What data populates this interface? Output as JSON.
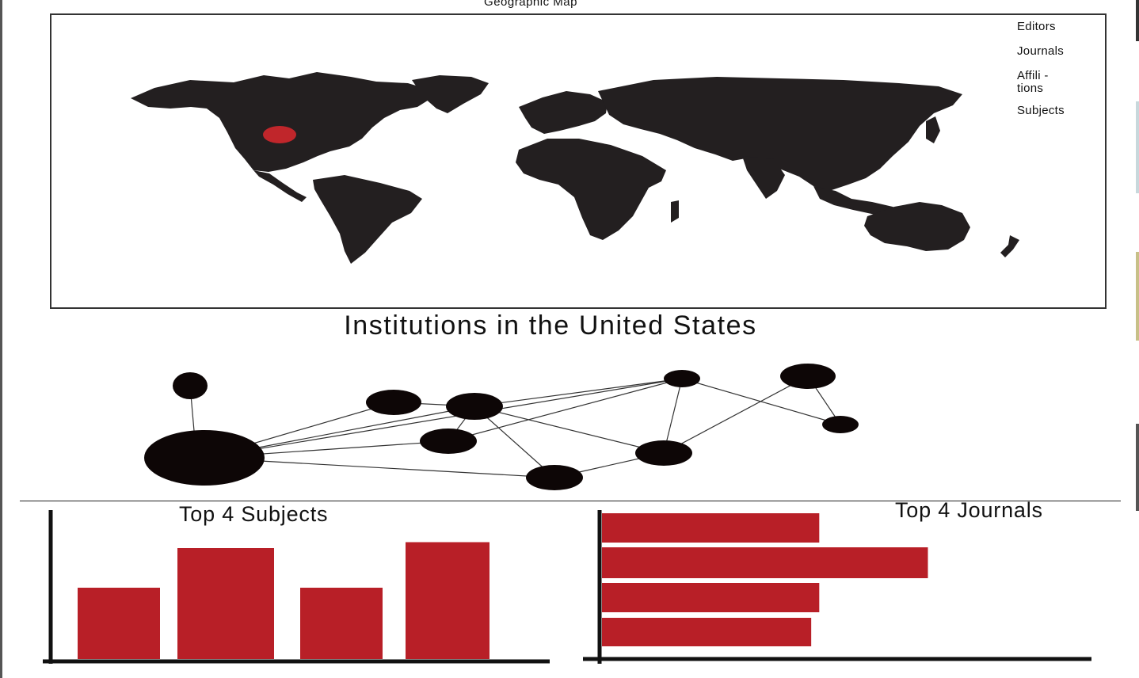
{
  "map_panel": {
    "title": "Geographic Map",
    "legend": [
      "Editors",
      "Journals",
      "Affili  -\ntions",
      "Subjects"
    ],
    "marker_color": "#c0262b",
    "land_color": "#231f20"
  },
  "network_panel": {
    "title": "Institutions in the United States",
    "node_color": "#0d0606"
  },
  "colors": {
    "bar": "#b81f27",
    "axis": "#111111"
  },
  "chart_data": [
    {
      "type": "bar",
      "title": "Top 4 Subjects",
      "categories": [
        "",
        "",
        "",
        ""
      ],
      "values": [
        3.6,
        5.6,
        3.6,
        5.9
      ],
      "ylim": [
        0,
        7.2
      ],
      "xlabel": "",
      "ylabel": "",
      "grid": false
    },
    {
      "type": "bar",
      "orientation": "horizontal",
      "title": "Top 4 Journals",
      "categories": [
        "",
        "",
        "",
        ""
      ],
      "values": [
        54,
        81,
        54,
        52
      ],
      "xlim": [
        0,
        100
      ],
      "xlabel": "",
      "ylabel": "",
      "grid": false
    }
  ]
}
